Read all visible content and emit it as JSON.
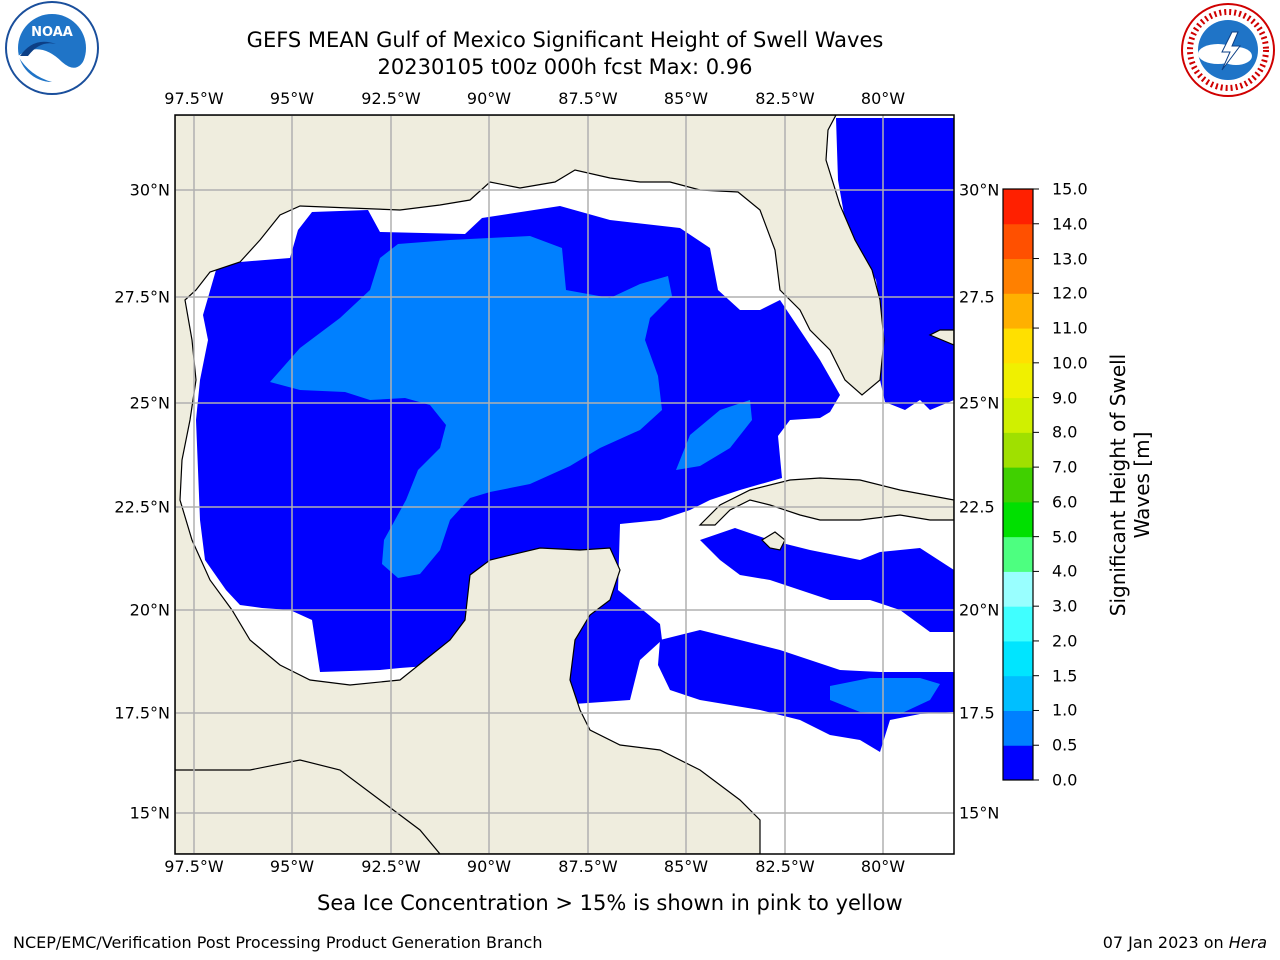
{
  "header": {
    "title_line1": "GEFS MEAN Gulf of Mexico Significant Height of Swell Waves",
    "title_line2": "20230105 t00z 000h fcst   Max: 0.96"
  },
  "logos": {
    "left": {
      "name": "NOAA",
      "ring_text": "NATIONAL OCEANIC AND ATMOSPHERIC ADMINISTRATION · U.S. DEPARTMENT OF COMMERCE"
    },
    "right": {
      "name": "NATIONAL WEATHER SERVICE"
    }
  },
  "map": {
    "lon_labels": [
      "97.5°W",
      "95°W",
      "92.5°W",
      "90°W",
      "87.5°W",
      "85°W",
      "82.5°W",
      "80°W"
    ],
    "lat_labels_left": [
      "30°N",
      "27.5°N",
      "25°N",
      "22.5°N",
      "20°N",
      "17.5°N",
      "15°N"
    ],
    "lat_labels_right": [
      "30°N",
      "27.5",
      "25°N",
      "22.5",
      "20°N",
      "17.5",
      "15°N"
    ],
    "colors": {
      "land": "#efedde",
      "ocean_nodata": "#ffffff",
      "grid": "#b0b0b0",
      "coast": "#000000"
    }
  },
  "colorbar": {
    "label_line1": "Significant Height of Swell",
    "label_line2": "Waves [m]",
    "ticks": [
      "0.0",
      "0.5",
      "1.0",
      "1.5",
      "2.0",
      "3.0",
      "4.0",
      "5.0",
      "6.0",
      "7.0",
      "8.0",
      "9.0",
      "10.0",
      "11.0",
      "12.0",
      "13.0",
      "14.0",
      "15.0"
    ],
    "colors": [
      "#0000ff",
      "#0080ff",
      "#00bfff",
      "#00e5ff",
      "#40ffff",
      "#99ffff",
      "#4dff80",
      "#00e000",
      "#40d000",
      "#a0e000",
      "#d0f000",
      "#f0f000",
      "#ffe000",
      "#ffb000",
      "#ff8000",
      "#ff5000",
      "#ff2000",
      "#ff0000"
    ]
  },
  "caption": "Sea Ice Concentration > 15% is shown in pink to yellow",
  "footer": {
    "left": "NCEP/EMC/Verification Post Processing Product Generation Branch",
    "right_prefix": "07 Jan 2023 on ",
    "right_host": "Hera"
  }
}
